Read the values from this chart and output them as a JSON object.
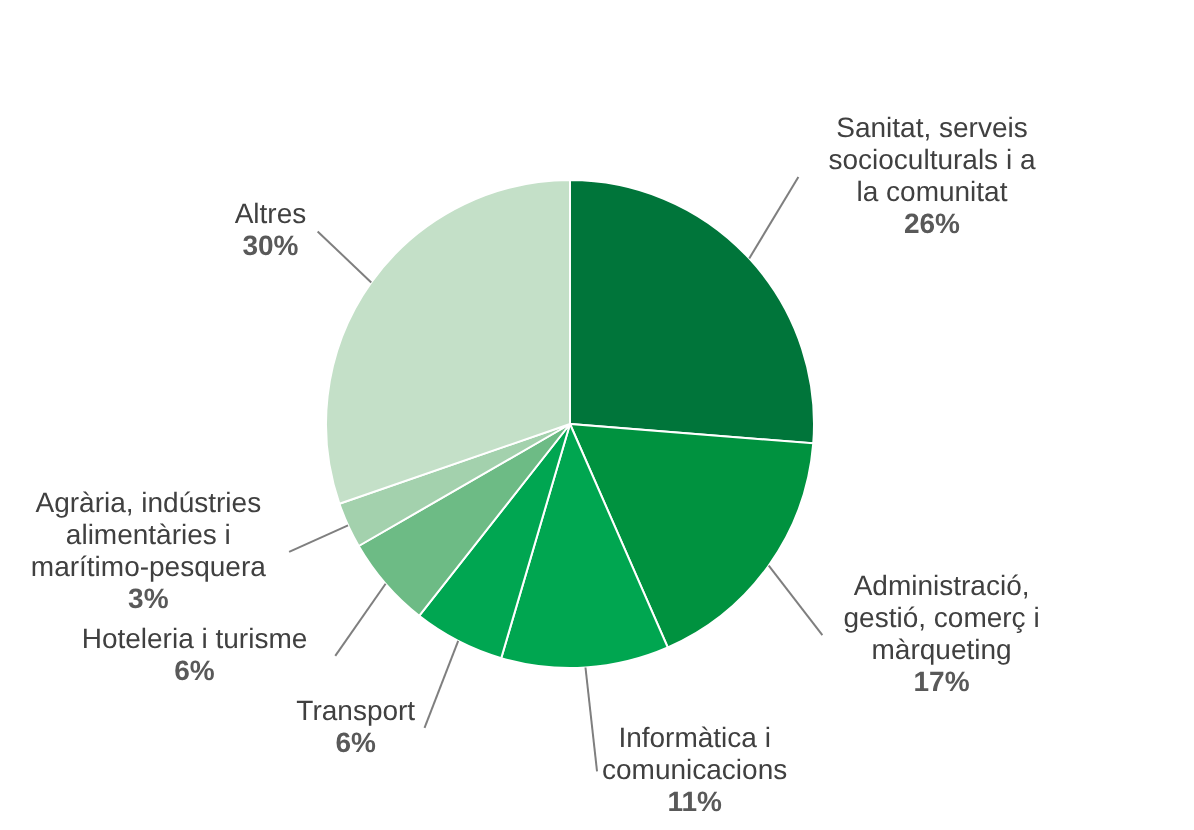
{
  "chart_data": {
    "type": "pie",
    "categories": [
      "Sanitat, serveis socioculturals i a la comunitat",
      "Administració, gestió, comerç i màrqueting",
      "Informàtica i comunicacions",
      "Transport",
      "Hoteleria i turisme",
      "Agrària, indústries alimentàries i marítimo-pesquera",
      "Altres"
    ],
    "values": [
      26,
      17,
      11,
      6,
      6,
      3,
      30
    ],
    "value_labels": [
      "26%",
      "17%",
      "11%",
      "6%",
      "6%",
      "3%",
      "30%"
    ],
    "colors": [
      "#00753a",
      "#00923f",
      "#00a650",
      "#00a651",
      "#6dbb85",
      "#a3d1ad",
      "#c4e0c8"
    ]
  }
}
